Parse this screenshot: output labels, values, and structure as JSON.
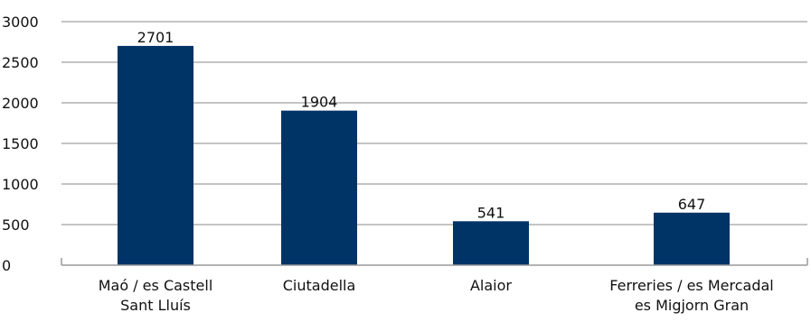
{
  "chart_data": {
    "type": "bar",
    "title": "",
    "xlabel": "",
    "ylabel": "",
    "ylim": [
      0,
      3000
    ],
    "yticks": [
      0,
      500,
      1000,
      1500,
      2000,
      2500,
      3000
    ],
    "grid": true,
    "legend": "none",
    "categories": [
      [
        "Maó / es Castell",
        "Sant Lluís"
      ],
      [
        "Ciutadella"
      ],
      [
        "Alaior"
      ],
      [
        "Ferreries / es Mercadal",
        "es Migjorn Gran"
      ]
    ],
    "values": [
      2701,
      1904,
      541,
      647
    ],
    "data_labels": [
      "2701",
      "1904",
      "541",
      "647"
    ],
    "bar_color": "#003366"
  }
}
